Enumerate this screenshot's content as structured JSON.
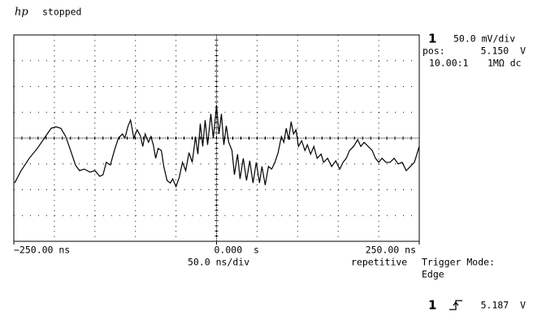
{
  "header": {
    "logo": "hp",
    "status": "stopped"
  },
  "channel": {
    "number": "1",
    "scale": "50.0 mV/div",
    "position_label": "pos:",
    "position": "5.150  V",
    "probe": "10.00:1",
    "coupling": "1MΩ dc"
  },
  "timebase": "50.0 ns/div",
  "acquisition": "repetitive",
  "trigger": {
    "mode_label": "Trigger Mode:",
    "mode": "Edge",
    "source": "1",
    "level": "5.187  V"
  },
  "chart_data": {
    "type": "line",
    "color": "#000000",
    "xlim": [
      -250,
      250
    ],
    "ylim": [
      4.95,
      5.35
    ],
    "xticks": [
      {
        "value": -250,
        "label": "−250.00 ns"
      },
      {
        "value": 0,
        "label": "0.000  s"
      },
      {
        "value": 250,
        "label": "250.00 ns"
      }
    ],
    "x": [
      -249,
      -241,
      -231,
      -221,
      -211,
      -204,
      -198,
      -192,
      -186,
      -180,
      -174,
      -169,
      -163,
      -156,
      -150,
      -144,
      -140,
      -136,
      -131,
      -126,
      -121,
      -116,
      -113,
      -109,
      -106,
      -102,
      -98,
      -94,
      -91,
      -88,
      -84,
      -81,
      -78,
      -75,
      -72,
      -68,
      -65,
      -61,
      -57,
      -54,
      -50,
      -46,
      -42,
      -38,
      -34,
      -30,
      -26,
      -23,
      -20,
      -17,
      -14,
      -11,
      -7,
      -4,
      0,
      3,
      6,
      9,
      12,
      15,
      19,
      22,
      26,
      29,
      33,
      37,
      41,
      45,
      49,
      53,
      56,
      60,
      64,
      68,
      72,
      76,
      80,
      83,
      86,
      89,
      92,
      95,
      98,
      101,
      105,
      109,
      112,
      116,
      120,
      124,
      129,
      132,
      137,
      142,
      147,
      152,
      156,
      160,
      164,
      169,
      174,
      178,
      182,
      187,
      192,
      196,
      200,
      204,
      209,
      214,
      219,
      224,
      229,
      234,
      239,
      244,
      250
    ],
    "values": [
      5.063,
      5.087,
      5.111,
      5.13,
      5.153,
      5.169,
      5.172,
      5.169,
      5.153,
      5.126,
      5.098,
      5.087,
      5.09,
      5.084,
      5.087,
      5.076,
      5.079,
      5.103,
      5.098,
      5.126,
      5.15,
      5.158,
      5.15,
      5.174,
      5.185,
      5.15,
      5.166,
      5.155,
      5.134,
      5.158,
      5.142,
      5.153,
      5.137,
      5.111,
      5.13,
      5.126,
      5.095,
      5.068,
      5.063,
      5.071,
      5.056,
      5.074,
      5.103,
      5.087,
      5.122,
      5.103,
      5.153,
      5.119,
      5.178,
      5.134,
      5.185,
      5.137,
      5.197,
      5.15,
      5.213,
      5.158,
      5.197,
      5.137,
      5.174,
      5.142,
      5.126,
      5.079,
      5.119,
      5.071,
      5.111,
      5.068,
      5.106,
      5.063,
      5.103,
      5.063,
      5.095,
      5.059,
      5.095,
      5.09,
      5.103,
      5.122,
      5.153,
      5.142,
      5.169,
      5.147,
      5.182,
      5.158,
      5.166,
      5.134,
      5.145,
      5.126,
      5.137,
      5.119,
      5.134,
      5.111,
      5.119,
      5.103,
      5.111,
      5.095,
      5.106,
      5.09,
      5.103,
      5.111,
      5.126,
      5.134,
      5.147,
      5.134,
      5.142,
      5.134,
      5.126,
      5.111,
      5.103,
      5.111,
      5.103,
      5.103,
      5.111,
      5.1,
      5.103,
      5.087,
      5.095,
      5.103,
      5.134
    ]
  }
}
